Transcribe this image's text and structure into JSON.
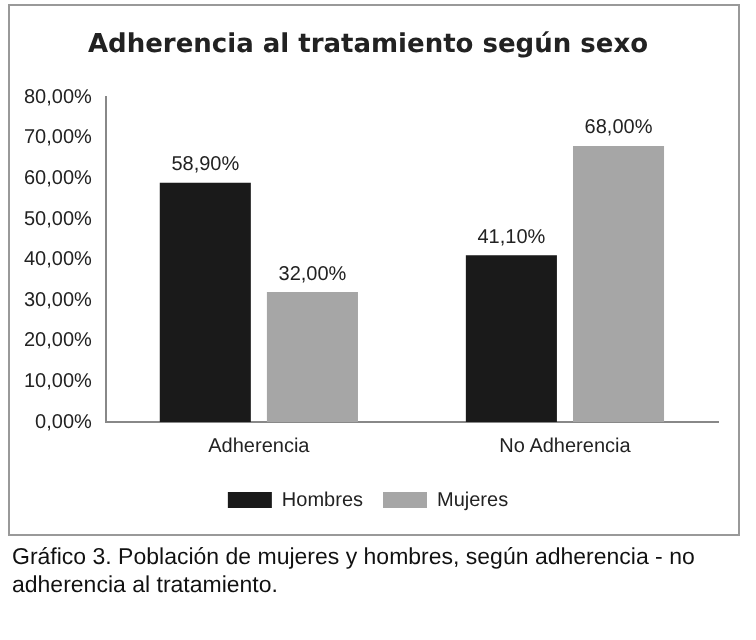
{
  "chart_data": {
    "type": "bar",
    "title": "Adherencia al tratamiento según sexo",
    "categories": [
      "Adherencia",
      "No Adherencia"
    ],
    "series": [
      {
        "name": "Hombres",
        "color": "#1a1a1a",
        "values": [
          58.9,
          41.1
        ],
        "value_labels": [
          "58,90%",
          "41,10%"
        ]
      },
      {
        "name": "Mujeres",
        "color": "#a6a6a6",
        "values": [
          32,
          68
        ],
        "value_labels": [
          "32,00%",
          "68,00%"
        ]
      }
    ],
    "ylim": [
      0,
      80
    ],
    "yticks": [
      {
        "value": 0,
        "label": "0,00%"
      },
      {
        "value": 10,
        "label": "10,00%"
      },
      {
        "value": 20,
        "label": "20,00%"
      },
      {
        "value": 30,
        "label": "30,00%"
      },
      {
        "value": 40,
        "label": "40,00%"
      },
      {
        "value": 50,
        "label": "50,00%"
      },
      {
        "value": 60,
        "label": "60,00%"
      },
      {
        "value": 70,
        "label": "70,00%"
      },
      {
        "value": 80,
        "label": "80,00%"
      }
    ],
    "grid": false,
    "legend": "bottom",
    "annotations": [
      "Gráfico 3. Población de mujeres y hombres, según adherencia - no adherencia al tratamiento."
    ]
  }
}
